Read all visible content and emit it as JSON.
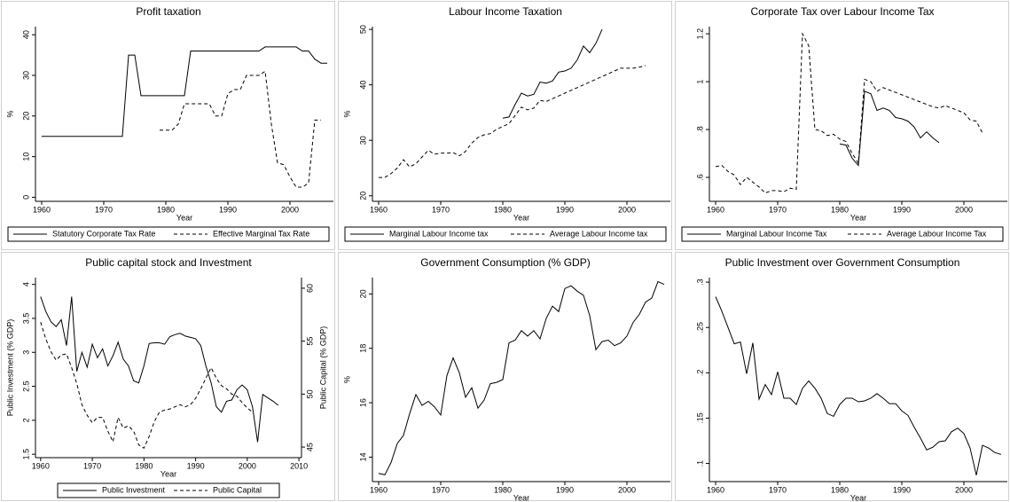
{
  "chart_data": [
    {
      "type": "line",
      "title": "Profit taxation",
      "x_label": "Year",
      "y_label": "%",
      "x": [
        1960,
        1961,
        1962,
        1963,
        1964,
        1965,
        1966,
        1967,
        1968,
        1969,
        1970,
        1971,
        1972,
        1973,
        1974,
        1975,
        1976,
        1977,
        1978,
        1979,
        1980,
        1981,
        1982,
        1983,
        1984,
        1985,
        1986,
        1987,
        1988,
        1989,
        1990,
        1991,
        1992,
        1993,
        1994,
        1995,
        1996,
        1997,
        1998,
        1999,
        2000,
        2001,
        2002,
        2003,
        2004,
        2005,
        2006
      ],
      "xlim": [
        1959,
        2007
      ],
      "xticks": [
        1960,
        1970,
        1980,
        1990,
        2000
      ],
      "ylim": [
        -1,
        42
      ],
      "yticks": [
        0,
        10,
        20,
        30,
        40
      ],
      "legend": "bottom",
      "series": [
        {
          "name": "Statutory Corporate Tax Rate",
          "color": "#000000",
          "style": "solid",
          "values": [
            15,
            15,
            15,
            15,
            15,
            15,
            15,
            15,
            15,
            15,
            15,
            15,
            15,
            15,
            35,
            35,
            25,
            25,
            25,
            25,
            25,
            25,
            25,
            25,
            36,
            36,
            36,
            36,
            36,
            36,
            36,
            36,
            36,
            36,
            36,
            36,
            37,
            37,
            37,
            37,
            37,
            37,
            36,
            36,
            34,
            33,
            33
          ]
        },
        {
          "name": "Effective Marginal Tax Rate",
          "color": "#000000",
          "style": "dashed",
          "values": [
            null,
            null,
            null,
            null,
            null,
            null,
            null,
            null,
            null,
            null,
            null,
            null,
            null,
            null,
            null,
            null,
            null,
            null,
            null,
            16.5,
            16.5,
            16.5,
            18,
            23,
            23,
            23,
            23,
            23,
            20,
            20,
            25.5,
            26.5,
            26.5,
            30,
            30,
            30,
            31,
            18,
            8.5,
            8,
            5,
            2.5,
            2.5,
            3.5,
            19,
            19,
            null
          ]
        }
      ]
    },
    {
      "type": "line",
      "title": "Labour Income Taxation",
      "x_label": "Year",
      "y_label": "%",
      "x": [
        1960,
        1961,
        1962,
        1963,
        1964,
        1965,
        1966,
        1967,
        1968,
        1969,
        1970,
        1971,
        1972,
        1973,
        1974,
        1975,
        1976,
        1977,
        1978,
        1979,
        1980,
        1981,
        1982,
        1983,
        1984,
        1985,
        1986,
        1987,
        1988,
        1989,
        1990,
        1991,
        1992,
        1993,
        1994,
        1995,
        1996,
        1997,
        1998,
        1999,
        2000,
        2001,
        2002,
        2003
      ],
      "xlim": [
        1959,
        2007
      ],
      "xticks": [
        1960,
        1970,
        1980,
        1990,
        2000
      ],
      "ylim": [
        19,
        50.5
      ],
      "yticks": [
        20,
        30,
        40,
        50
      ],
      "legend": "bottom",
      "series": [
        {
          "name": "Marginal Labour Income tax",
          "color": "#000000",
          "style": "solid",
          "values": [
            null,
            null,
            null,
            null,
            null,
            null,
            null,
            null,
            null,
            null,
            null,
            null,
            null,
            null,
            null,
            null,
            null,
            null,
            null,
            null,
            34,
            34.2,
            36.5,
            38.5,
            38,
            38.3,
            40.5,
            40.3,
            40.7,
            42.3,
            42.5,
            43,
            44.5,
            47,
            45.8,
            47.5,
            50,
            null,
            null,
            null,
            null,
            null,
            null,
            null
          ]
        },
        {
          "name": "Average Labour Income tax",
          "color": "#000000",
          "style": "dashed",
          "values": [
            23.3,
            23.3,
            24,
            25,
            26.5,
            25.2,
            25.8,
            27,
            28.2,
            27.5,
            27.7,
            27.7,
            27.8,
            27.2,
            28,
            29.5,
            30.5,
            31,
            31.2,
            32,
            32.5,
            33,
            34.5,
            36,
            35.5,
            35.8,
            37.2,
            37,
            37.5,
            38,
            38.5,
            39,
            39.5,
            40,
            40.5,
            41,
            41.5,
            42,
            42.5,
            43,
            43,
            43,
            43.2,
            43.5
          ]
        }
      ]
    },
    {
      "type": "line",
      "title": "Corporate Tax over Labour Income Tax",
      "x_label": "Year",
      "x": [
        1960,
        1961,
        1962,
        1963,
        1964,
        1965,
        1966,
        1967,
        1968,
        1969,
        1970,
        1971,
        1972,
        1973,
        1974,
        1975,
        1976,
        1977,
        1978,
        1979,
        1980,
        1981,
        1982,
        1983,
        1984,
        1985,
        1986,
        1987,
        1988,
        1989,
        1990,
        1991,
        1992,
        1993,
        1994,
        1995,
        1996,
        1997,
        1998,
        1999,
        2000,
        2001,
        2002,
        2003
      ],
      "xlim": [
        1959,
        2007
      ],
      "xticks": [
        1960,
        1970,
        1980,
        1990,
        2000
      ],
      "ylim": [
        0.5,
        1.23
      ],
      "yticks": [
        {
          "value": 0.6,
          "label": ".6"
        },
        {
          "value": 0.8,
          "label": ".8"
        },
        1,
        1.2
      ],
      "legend": "bottom",
      "series": [
        {
          "name": "Marginal Labour Income Tax",
          "color": "#000000",
          "style": "solid",
          "values": [
            null,
            null,
            null,
            null,
            null,
            null,
            null,
            null,
            null,
            null,
            null,
            null,
            null,
            null,
            null,
            null,
            null,
            null,
            null,
            null,
            0.74,
            0.735,
            0.68,
            0.65,
            0.96,
            0.95,
            0.88,
            0.89,
            0.88,
            0.85,
            0.845,
            0.835,
            0.81,
            0.765,
            0.79,
            0.765,
            0.745,
            null,
            null,
            null,
            null,
            null,
            null,
            null
          ]
        },
        {
          "name": "Average Labour Income Tax",
          "color": "#000000",
          "style": "dashed",
          "values": [
            0.645,
            0.65,
            0.625,
            0.61,
            0.57,
            0.6,
            0.58,
            0.56,
            0.535,
            0.545,
            0.545,
            0.54,
            0.555,
            0.55,
            1.2,
            1.15,
            0.8,
            0.795,
            0.775,
            0.78,
            0.76,
            0.75,
            0.7,
            0.66,
            1.01,
            1.0,
            0.96,
            0.975,
            0.965,
            0.955,
            0.945,
            0.935,
            0.925,
            0.915,
            0.905,
            0.895,
            0.89,
            0.9,
            0.89,
            0.88,
            0.87,
            0.84,
            0.835,
            0.785
          ]
        }
      ]
    },
    {
      "type": "line",
      "title": "Public capital stock and Investment",
      "x_label": "Year",
      "y_label": "Public Investment (% GDP)",
      "y2_label": "Public Capital (% GDP)",
      "x": [
        1960,
        1961,
        1962,
        1963,
        1964,
        1965,
        1966,
        1967,
        1968,
        1969,
        1970,
        1971,
        1972,
        1973,
        1974,
        1975,
        1976,
        1977,
        1978,
        1979,
        1980,
        1981,
        1982,
        1983,
        1984,
        1985,
        1986,
        1987,
        1988,
        1989,
        1990,
        1991,
        1992,
        1993,
        1994,
        1995,
        1996,
        1997,
        1998,
        1999,
        2000,
        2001,
        2002,
        2003,
        2004,
        2005,
        2006
      ],
      "xlim": [
        1959,
        2010.5
      ],
      "xticks": [
        1960,
        1970,
        1980,
        1990,
        2000,
        2010
      ],
      "ylim": [
        1.45,
        4.1
      ],
      "yticks": [
        1.5,
        2,
        2.5,
        3,
        3.5,
        4
      ],
      "y2lim": [
        44,
        61
      ],
      "y2ticks": [
        45,
        50,
        55,
        60
      ],
      "legend": "bottom",
      "series": [
        {
          "name": "Public Investment",
          "color": "#000000",
          "style": "solid",
          "values": [
            3.82,
            3.6,
            3.45,
            3.38,
            3.48,
            3.1,
            3.82,
            2.72,
            3.0,
            2.78,
            3.12,
            2.92,
            3.05,
            2.8,
            2.95,
            3.15,
            2.9,
            2.8,
            2.58,
            2.55,
            2.8,
            3.13,
            3.14,
            3.14,
            3.12,
            3.23,
            3.26,
            3.28,
            3.24,
            3.22,
            3.2,
            3.1,
            2.8,
            2.55,
            2.2,
            2.12,
            2.28,
            2.3,
            2.45,
            2.52,
            2.45,
            2.2,
            1.68,
            2.38,
            2.33,
            2.28,
            2.22
          ]
        },
        {
          "name": "Public Capital",
          "color": "#000000",
          "style": "dashed",
          "axis": "y2",
          "values": [
            56.8,
            55.2,
            54,
            53.2,
            53.7,
            53.8,
            52.5,
            51,
            49,
            48,
            47.3,
            47.8,
            47.8,
            46.5,
            45.5,
            47.8,
            46.8,
            47,
            46.5,
            45.2,
            44.9,
            46,
            47.4,
            48.3,
            48.5,
            48.6,
            48.8,
            49,
            48.8,
            49,
            49.6,
            50.5,
            51.5,
            52.5,
            51.5,
            50.8,
            50.5,
            50,
            49.8,
            49.2,
            48.7,
            48.3,
            null,
            null,
            null,
            null,
            null
          ]
        }
      ]
    },
    {
      "type": "line",
      "title": "Government Consumption (% GDP)",
      "x_label": "Year",
      "y_label": "%",
      "x": [
        1960,
        1961,
        1962,
        1963,
        1964,
        1965,
        1966,
        1967,
        1968,
        1969,
        1970,
        1971,
        1972,
        1973,
        1974,
        1975,
        1976,
        1977,
        1978,
        1979,
        1980,
        1981,
        1982,
        1983,
        1984,
        1985,
        1986,
        1987,
        1988,
        1989,
        1990,
        1991,
        1992,
        1993,
        1994,
        1995,
        1996,
        1997,
        1998,
        1999,
        2000,
        2001,
        2002,
        2003,
        2004,
        2005,
        2006
      ],
      "xlim": [
        1959,
        2007
      ],
      "xticks": [
        1960,
        1970,
        1980,
        1990,
        2000
      ],
      "ylim": [
        13.1,
        20.6
      ],
      "yticks": [
        14,
        16,
        18,
        20
      ],
      "series": [
        {
          "color": "#000000",
          "style": "solid",
          "values": [
            13.4,
            13.35,
            13.8,
            14.5,
            14.8,
            15.6,
            16.3,
            15.9,
            16.05,
            15.85,
            15.55,
            17.0,
            17.65,
            17.1,
            16.2,
            16.55,
            15.8,
            16.1,
            16.7,
            16.75,
            16.85,
            18.2,
            18.3,
            18.65,
            18.45,
            18.65,
            18.35,
            19.1,
            19.55,
            19.35,
            20.2,
            20.3,
            20.1,
            19.95,
            19.2,
            17.95,
            18.25,
            18.3,
            18.1,
            18.2,
            18.45,
            18.95,
            19.25,
            19.7,
            19.85,
            20.45,
            20.35
          ]
        }
      ]
    },
    {
      "type": "line",
      "title": "Public Investment over Government Consumption",
      "x_label": "Year",
      "x": [
        1960,
        1961,
        1962,
        1963,
        1964,
        1965,
        1966,
        1967,
        1968,
        1969,
        1970,
        1971,
        1972,
        1973,
        1974,
        1975,
        1976,
        1977,
        1978,
        1979,
        1980,
        1981,
        1982,
        1983,
        1984,
        1985,
        1986,
        1987,
        1988,
        1989,
        1990,
        1991,
        1992,
        1993,
        1994,
        1995,
        1996,
        1997,
        1998,
        1999,
        2000,
        2001,
        2002,
        2003,
        2004,
        2005,
        2006
      ],
      "xlim": [
        1959,
        2007
      ],
      "xticks": [
        1960,
        1970,
        1980,
        1990,
        2000
      ],
      "ylim": [
        0.08,
        0.305
      ],
      "yticks": [
        {
          "value": 0.1,
          "label": ".1"
        },
        {
          "value": 0.15,
          "label": ".15"
        },
        {
          "value": 0.2,
          "label": ".2"
        },
        {
          "value": 0.25,
          "label": ".25"
        },
        {
          "value": 0.3,
          "label": ".3"
        }
      ],
      "series": [
        {
          "color": "#000000",
          "style": "solid",
          "values": [
            0.284,
            0.268,
            0.25,
            0.232,
            0.234,
            0.199,
            0.233,
            0.171,
            0.187,
            0.176,
            0.201,
            0.172,
            0.172,
            0.165,
            0.183,
            0.191,
            0.183,
            0.172,
            0.155,
            0.152,
            0.165,
            0.172,
            0.172,
            0.168,
            0.169,
            0.172,
            0.177,
            0.172,
            0.166,
            0.166,
            0.158,
            0.153,
            0.14,
            0.128,
            0.115,
            0.118,
            0.124,
            0.125,
            0.135,
            0.139,
            0.133,
            0.117,
            0.087,
            0.12,
            0.117,
            0.112,
            0.11
          ]
        }
      ]
    }
  ]
}
